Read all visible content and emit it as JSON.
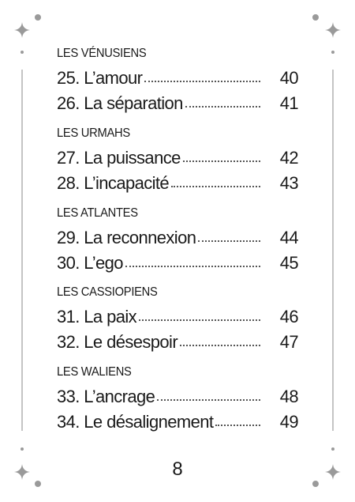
{
  "sections": [
    {
      "title": "LES VÉNUSIENS",
      "entries": [
        {
          "label": "25. L’amour",
          "page": 40
        },
        {
          "label": "26. La séparation",
          "page": 41
        }
      ]
    },
    {
      "title": "LES URMAHS",
      "entries": [
        {
          "label": "27. La puissance",
          "page": 42
        },
        {
          "label": "28. L’incapacité",
          "page": 43
        }
      ]
    },
    {
      "title": "LES ATLANTES",
      "entries": [
        {
          "label": "29. La reconnexion",
          "page": 44
        },
        {
          "label": "30. L’ego",
          "page": 45
        }
      ]
    },
    {
      "title": "LES CASSIOPIENS",
      "entries": [
        {
          "label": "31. La paix",
          "page": 46
        },
        {
          "label": "32. Le désespoir",
          "page": 47
        }
      ]
    },
    {
      "title": "LES WALIENS",
      "entries": [
        {
          "label": "33. L’ancrage",
          "page": 48
        },
        {
          "label": "34. Le désalignement",
          "page": 49
        }
      ]
    }
  ],
  "page_number": 8
}
